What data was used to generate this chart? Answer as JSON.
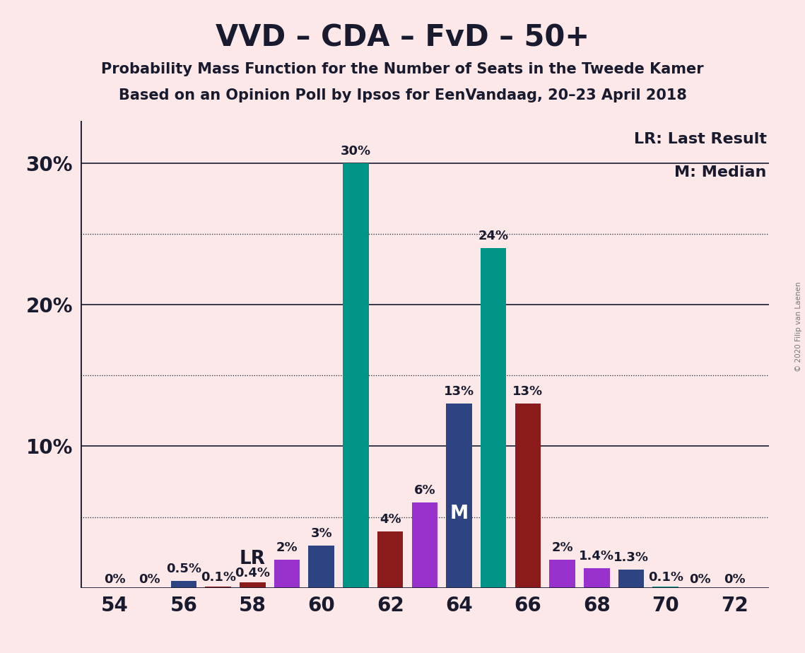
{
  "title": "VVD – CDA – FvD – 50+",
  "subtitle1": "Probability Mass Function for the Number of Seats in the Tweede Kamer",
  "subtitle2": "Based on an Opinion Poll by Ipsos for EenVandaag, 20–23 April 2018",
  "copyright": "© 2020 Filip van Laenen",
  "legend_lr": "LR: Last Result",
  "legend_m": "M: Median",
  "background_color": "#fce8e8",
  "seats": [
    54,
    55,
    56,
    57,
    58,
    59,
    60,
    61,
    62,
    63,
    64,
    65,
    66,
    67,
    68,
    69,
    70,
    71,
    72
  ],
  "values": [
    0.0,
    0.0,
    0.5,
    0.1,
    0.4,
    2.0,
    3.0,
    30.0,
    4.0,
    6.0,
    13.0,
    24.0,
    13.0,
    2.0,
    1.4,
    1.3,
    0.1,
    0.0,
    0.0
  ],
  "label_values": [
    "0%",
    "0%",
    "0.5%",
    "0.1%",
    "0.4%",
    "2%",
    "3%",
    "30%",
    "4%",
    "6%",
    "13%",
    "24%",
    "13%",
    "2%",
    "1.4%",
    "1.3%",
    "0.1%",
    "0%",
    "0%"
  ],
  "bar_colors": [
    "#2e4482",
    "#009587",
    "#2e4482",
    "#8b1a1a",
    "#8b1a1a",
    "#9932cc",
    "#2e4482",
    "#009587",
    "#8b1a1a",
    "#9932cc",
    "#2e4482",
    "#009587",
    "#8b1a1a",
    "#9932cc",
    "#9932cc",
    "#2e4482",
    "#009587",
    "#2e4482",
    "#8b1a1a"
  ],
  "lr_seat": 58,
  "median_seat": 64,
  "xticks": [
    54,
    56,
    58,
    60,
    62,
    64,
    66,
    68,
    70,
    72
  ],
  "ylim_max": 33,
  "solid_yticks": [
    10,
    20,
    30
  ],
  "dotted_yticks": [
    5,
    15,
    25
  ],
  "title_fontsize": 30,
  "subtitle_fontsize": 15,
  "tick_fontsize": 20,
  "bar_label_fontsize": 13,
  "annotation_fontsize": 19,
  "legend_fontsize": 16,
  "copyright_fontsize": 7.5
}
